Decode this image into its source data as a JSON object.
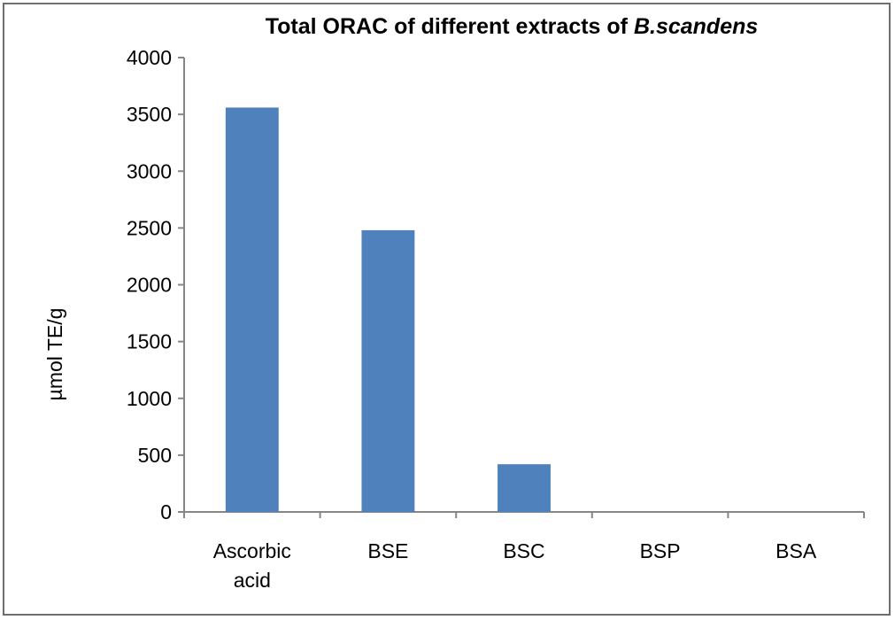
{
  "chart_data": {
    "type": "bar",
    "title": "Total ORAC of different extracts of ",
    "title_italic": "B.scandens",
    "xlabel": "",
    "ylabel": "µmol TE/g",
    "categories": [
      "Ascorbic acid",
      "BSE",
      "BSC",
      "BSP",
      "BSA"
    ],
    "category_lines": [
      [
        "Ascorbic",
        "acid"
      ],
      [
        "BSE"
      ],
      [
        "BSC"
      ],
      [
        "BSP"
      ],
      [
        "BSA"
      ]
    ],
    "values": [
      3560,
      2480,
      420,
      0,
      0
    ],
    "ylim": [
      0,
      4000
    ],
    "yticks": [
      0,
      500,
      1000,
      1500,
      2000,
      2500,
      3000,
      3500,
      4000
    ],
    "grid": false,
    "legend": "none",
    "bar_color": "#4f81bd"
  }
}
